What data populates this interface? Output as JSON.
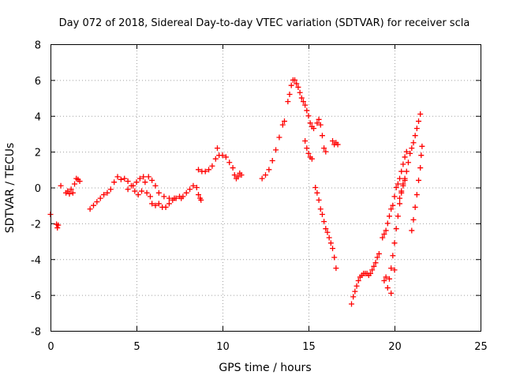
{
  "chart_data": {
    "type": "scatter",
    "title": "Day 072 of 2018, Sidereal Day-to-day VTEC variation (SDTVAR) for receiver scla",
    "xlabel": "GPS time / hours",
    "ylabel": "SDTVAR / TECUs",
    "xlim": [
      0,
      25
    ],
    "ylim": [
      -8,
      8
    ],
    "xticks": [
      0,
      5,
      10,
      15,
      20,
      25
    ],
    "yticks": [
      -8,
      -6,
      -4,
      -2,
      0,
      2,
      4,
      6,
      8
    ],
    "grid": true,
    "marker": "+",
    "color": "#ff0000",
    "series": [
      {
        "name": "SDTVAR",
        "points": [
          [
            0.0,
            -1.5
          ],
          [
            0.35,
            -2.05
          ],
          [
            0.4,
            -2.25
          ],
          [
            0.45,
            -2.1
          ],
          [
            0.6,
            0.1
          ],
          [
            0.9,
            -0.3
          ],
          [
            1.0,
            -0.2
          ],
          [
            1.1,
            -0.35
          ],
          [
            1.2,
            -0.1
          ],
          [
            1.3,
            -0.3
          ],
          [
            1.4,
            0.2
          ],
          [
            1.5,
            0.5
          ],
          [
            1.6,
            0.45
          ],
          [
            1.7,
            0.35
          ],
          [
            2.3,
            -1.2
          ],
          [
            2.5,
            -1.0
          ],
          [
            2.7,
            -0.8
          ],
          [
            2.9,
            -0.6
          ],
          [
            3.1,
            -0.4
          ],
          [
            3.3,
            -0.3
          ],
          [
            3.5,
            -0.1
          ],
          [
            3.7,
            0.3
          ],
          [
            3.9,
            0.6
          ],
          [
            4.1,
            0.45
          ],
          [
            4.3,
            0.5
          ],
          [
            4.5,
            0.35
          ],
          [
            4.7,
            0.1
          ],
          [
            4.9,
            -0.2
          ],
          [
            5.1,
            -0.4
          ],
          [
            5.3,
            -0.2
          ],
          [
            5.5,
            0.3
          ],
          [
            5.7,
            0.6
          ],
          [
            5.9,
            0.4
          ],
          [
            6.1,
            0.1
          ],
          [
            4.5,
            -0.1
          ],
          [
            4.8,
            0.1
          ],
          [
            5.0,
            0.3
          ],
          [
            5.2,
            0.5
          ],
          [
            5.4,
            0.6
          ],
          [
            5.6,
            -0.3
          ],
          [
            5.8,
            -0.5
          ],
          [
            5.9,
            -0.9
          ],
          [
            6.1,
            -1.0
          ],
          [
            6.3,
            -0.9
          ],
          [
            6.5,
            -1.1
          ],
          [
            6.7,
            -1.1
          ],
          [
            6.9,
            -0.9
          ],
          [
            7.1,
            -0.7
          ],
          [
            7.3,
            -0.6
          ],
          [
            7.5,
            -0.5
          ],
          [
            7.7,
            -0.5
          ],
          [
            7.9,
            -0.3
          ],
          [
            8.1,
            -0.1
          ],
          [
            8.3,
            0.1
          ],
          [
            8.5,
            0.0
          ],
          [
            6.3,
            -0.3
          ],
          [
            6.6,
            -0.5
          ],
          [
            6.9,
            -0.6
          ],
          [
            7.2,
            -0.6
          ],
          [
            7.6,
            -0.6
          ],
          [
            8.6,
            -0.4
          ],
          [
            8.7,
            -0.6
          ],
          [
            8.75,
            -0.7
          ],
          [
            8.6,
            1.0
          ],
          [
            8.8,
            0.9
          ],
          [
            9.0,
            0.9
          ],
          [
            9.2,
            1.0
          ],
          [
            9.4,
            1.2
          ],
          [
            9.6,
            1.6
          ],
          [
            9.7,
            2.2
          ],
          [
            9.8,
            1.8
          ],
          [
            10.0,
            1.8
          ],
          [
            10.2,
            1.7
          ],
          [
            10.4,
            1.4
          ],
          [
            10.6,
            1.1
          ],
          [
            10.7,
            0.7
          ],
          [
            10.8,
            0.5
          ],
          [
            10.9,
            0.6
          ],
          [
            11.0,
            0.8
          ],
          [
            11.1,
            0.7
          ],
          [
            12.3,
            0.5
          ],
          [
            12.5,
            0.7
          ],
          [
            12.7,
            1.0
          ],
          [
            12.9,
            1.5
          ],
          [
            13.1,
            2.1
          ],
          [
            13.3,
            2.8
          ],
          [
            13.5,
            3.5
          ],
          [
            13.6,
            3.7
          ],
          [
            13.8,
            4.8
          ],
          [
            13.9,
            5.2
          ],
          [
            14.0,
            5.7
          ],
          [
            14.1,
            6.0
          ],
          [
            14.2,
            6.0
          ],
          [
            14.3,
            5.8
          ],
          [
            14.4,
            5.6
          ],
          [
            14.5,
            5.3
          ],
          [
            14.6,
            5.0
          ],
          [
            14.7,
            4.8
          ],
          [
            14.8,
            4.6
          ],
          [
            14.9,
            4.3
          ],
          [
            15.0,
            4.0
          ],
          [
            15.1,
            3.6
          ],
          [
            15.2,
            3.4
          ],
          [
            15.3,
            3.3
          ],
          [
            14.8,
            2.6
          ],
          [
            14.9,
            2.2
          ],
          [
            15.0,
            1.9
          ],
          [
            15.1,
            1.7
          ],
          [
            15.2,
            1.6
          ],
          [
            15.5,
            3.6
          ],
          [
            15.6,
            3.8
          ],
          [
            15.7,
            3.5
          ],
          [
            15.8,
            2.9
          ],
          [
            15.9,
            2.2
          ],
          [
            16.0,
            2.0
          ],
          [
            16.4,
            2.6
          ],
          [
            16.5,
            2.4
          ],
          [
            16.6,
            2.5
          ],
          [
            16.7,
            2.4
          ],
          [
            15.4,
            0.0
          ],
          [
            15.5,
            -0.3
          ],
          [
            15.6,
            -0.7
          ],
          [
            15.7,
            -1.2
          ],
          [
            15.8,
            -1.5
          ],
          [
            15.9,
            -1.9
          ],
          [
            16.0,
            -2.3
          ],
          [
            16.1,
            -2.5
          ],
          [
            16.2,
            -2.8
          ],
          [
            16.3,
            -3.1
          ],
          [
            16.4,
            -3.4
          ],
          [
            16.5,
            -3.9
          ],
          [
            16.6,
            -4.5
          ],
          [
            17.5,
            -6.5
          ],
          [
            17.6,
            -6.1
          ],
          [
            17.7,
            -5.8
          ],
          [
            17.8,
            -5.5
          ],
          [
            17.9,
            -5.2
          ],
          [
            18.0,
            -5.0
          ],
          [
            18.1,
            -4.9
          ],
          [
            18.2,
            -4.8
          ],
          [
            18.3,
            -4.8
          ],
          [
            18.4,
            -4.8
          ],
          [
            18.5,
            -4.9
          ],
          [
            18.6,
            -4.8
          ],
          [
            18.7,
            -4.6
          ],
          [
            18.8,
            -4.4
          ],
          [
            18.9,
            -4.2
          ],
          [
            19.0,
            -3.9
          ],
          [
            19.1,
            -3.7
          ],
          [
            19.3,
            -2.8
          ],
          [
            19.4,
            -2.6
          ],
          [
            19.5,
            -2.4
          ],
          [
            19.6,
            -2.0
          ],
          [
            19.7,
            -1.6
          ],
          [
            19.8,
            -1.2
          ],
          [
            19.9,
            -1.0
          ],
          [
            20.0,
            -0.5
          ],
          [
            20.1,
            0.0
          ],
          [
            20.2,
            0.2
          ],
          [
            20.3,
            0.5
          ],
          [
            20.4,
            0.9
          ],
          [
            20.5,
            1.3
          ],
          [
            20.6,
            1.7
          ],
          [
            20.7,
            2.0
          ],
          [
            19.4,
            -5.2
          ],
          [
            19.5,
            -5.0
          ],
          [
            19.6,
            -5.6
          ],
          [
            19.7,
            -5.1
          ],
          [
            19.8,
            -4.5
          ],
          [
            19.9,
            -3.8
          ],
          [
            20.0,
            -3.1
          ],
          [
            20.1,
            -2.3
          ],
          [
            20.2,
            -1.6
          ],
          [
            20.3,
            -0.9
          ],
          [
            20.4,
            -0.3
          ],
          [
            20.5,
            0.2
          ],
          [
            20.6,
            0.4
          ],
          [
            20.3,
            -0.6
          ],
          [
            20.4,
            -0.2
          ],
          [
            20.5,
            0.1
          ],
          [
            20.6,
            0.5
          ],
          [
            20.7,
            0.9
          ],
          [
            20.8,
            1.4
          ],
          [
            20.9,
            1.9
          ],
          [
            21.0,
            2.2
          ],
          [
            21.1,
            2.5
          ],
          [
            21.2,
            2.9
          ],
          [
            21.3,
            3.3
          ],
          [
            21.4,
            3.7
          ],
          [
            21.5,
            4.1
          ],
          [
            21.0,
            -2.4
          ],
          [
            21.1,
            -1.8
          ],
          [
            21.2,
            -1.1
          ],
          [
            21.3,
            -0.4
          ],
          [
            21.4,
            0.4
          ],
          [
            21.5,
            1.1
          ],
          [
            21.55,
            1.8
          ],
          [
            21.6,
            2.3
          ],
          [
            19.8,
            -5.9
          ],
          [
            20.0,
            -4.6
          ]
        ]
      }
    ]
  }
}
